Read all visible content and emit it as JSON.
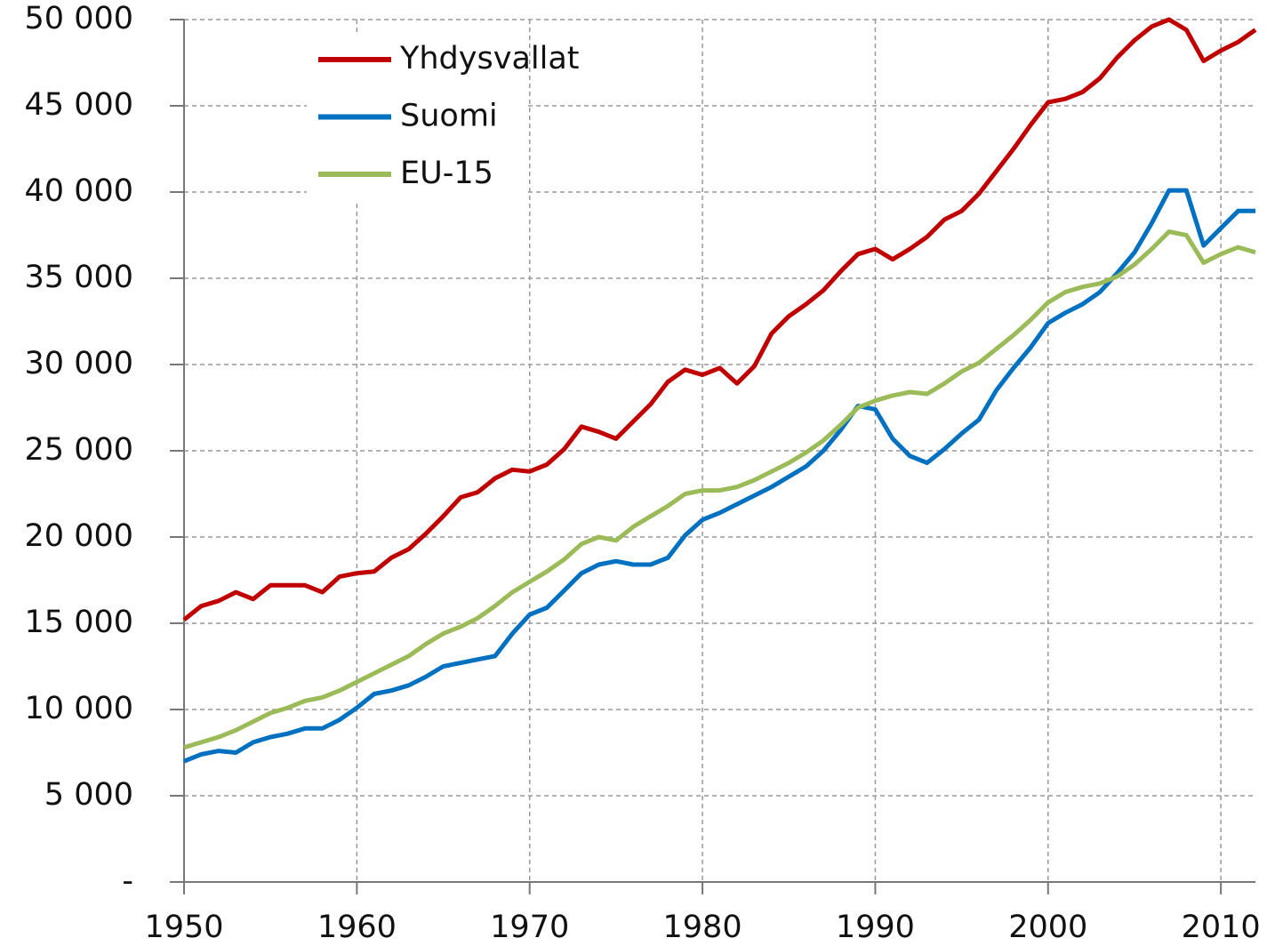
{
  "chart_data": {
    "type": "line",
    "x": [
      1950,
      1951,
      1952,
      1953,
      1954,
      1955,
      1956,
      1957,
      1958,
      1959,
      1960,
      1961,
      1962,
      1963,
      1964,
      1965,
      1966,
      1967,
      1968,
      1969,
      1970,
      1971,
      1972,
      1973,
      1974,
      1975,
      1976,
      1977,
      1978,
      1979,
      1980,
      1981,
      1982,
      1983,
      1984,
      1985,
      1986,
      1987,
      1988,
      1989,
      1990,
      1991,
      1992,
      1993,
      1994,
      1995,
      1996,
      1997,
      1998,
      1999,
      2000,
      2001,
      2002,
      2003,
      2004,
      2005,
      2006,
      2007,
      2008,
      2009,
      2010,
      2011,
      2012
    ],
    "series": [
      {
        "name": "Yhdysvallat",
        "color": "#c00000",
        "values": [
          15200,
          16000,
          16300,
          16800,
          16400,
          17200,
          17200,
          17200,
          16800,
          17700,
          17900,
          18000,
          18800,
          19300,
          20200,
          21200,
          22300,
          22600,
          23400,
          23900,
          23800,
          24200,
          25100,
          26400,
          26100,
          25700,
          26700,
          27700,
          29000,
          29700,
          29400,
          29800,
          28900,
          29900,
          31800,
          32800,
          33500,
          34300,
          35400,
          36400,
          36700,
          36100,
          36700,
          37400,
          38400,
          38900,
          39900,
          41200,
          42500,
          43900,
          45200,
          45400,
          45800,
          46600,
          47800,
          48800,
          49600,
          50000,
          49400,
          47600,
          48200,
          48700,
          49400
        ]
      },
      {
        "name": "Suomi",
        "color": "#0070c0",
        "values": [
          7000,
          7400,
          7600,
          7500,
          8100,
          8400,
          8600,
          8900,
          8900,
          9400,
          10100,
          10900,
          11100,
          11400,
          11900,
          12500,
          12700,
          12900,
          13100,
          14400,
          15500,
          15900,
          16900,
          17900,
          18400,
          18600,
          18400,
          18400,
          18800,
          20100,
          21000,
          21400,
          21900,
          22400,
          22900,
          23500,
          24100,
          25000,
          26200,
          27600,
          27400,
          25700,
          24700,
          24300,
          25100,
          26000,
          26800,
          28500,
          29800,
          31000,
          32400,
          33000,
          33500,
          34200,
          35300,
          36500,
          38200,
          40100,
          40100,
          36900,
          37900,
          38900,
          38900
        ]
      },
      {
        "name": "EU-15",
        "color": "#9bbb59",
        "values": [
          7800,
          8100,
          8400,
          8800,
          9300,
          9800,
          10100,
          10500,
          10700,
          11100,
          11600,
          12100,
          12600,
          13100,
          13800,
          14400,
          14800,
          15300,
          16000,
          16800,
          17400,
          18000,
          18700,
          19600,
          20000,
          19800,
          20600,
          21200,
          21800,
          22500,
          22700,
          22700,
          22900,
          23300,
          23800,
          24300,
          24900,
          25600,
          26500,
          27500,
          27900,
          28200,
          28400,
          28300,
          28900,
          29600,
          30100,
          30900,
          31700,
          32600,
          33600,
          34200,
          34500,
          34700,
          35100,
          35800,
          36700,
          37700,
          37500,
          35900,
          36400,
          36800,
          36500
        ]
      }
    ],
    "xlim": [
      1950,
      2012
    ],
    "xticks": [
      1950,
      1960,
      1970,
      1980,
      1990,
      2000,
      2010
    ],
    "ylim": [
      0,
      50000
    ],
    "yticks": [
      {
        "value": 0,
        "label": "-"
      },
      {
        "value": 5000,
        "label": "5 000"
      },
      {
        "value": 10000,
        "label": "10 000"
      },
      {
        "value": 15000,
        "label": "15 000"
      },
      {
        "value": 20000,
        "label": "20 000"
      },
      {
        "value": 25000,
        "label": "25 000"
      },
      {
        "value": 30000,
        "label": "30 000"
      },
      {
        "value": 35000,
        "label": "35 000"
      },
      {
        "value": 40000,
        "label": "40 000"
      },
      {
        "value": 45000,
        "label": "45 000"
      },
      {
        "value": 50000,
        "label": "50 000"
      }
    ],
    "grid": true,
    "legend": "upper left"
  }
}
